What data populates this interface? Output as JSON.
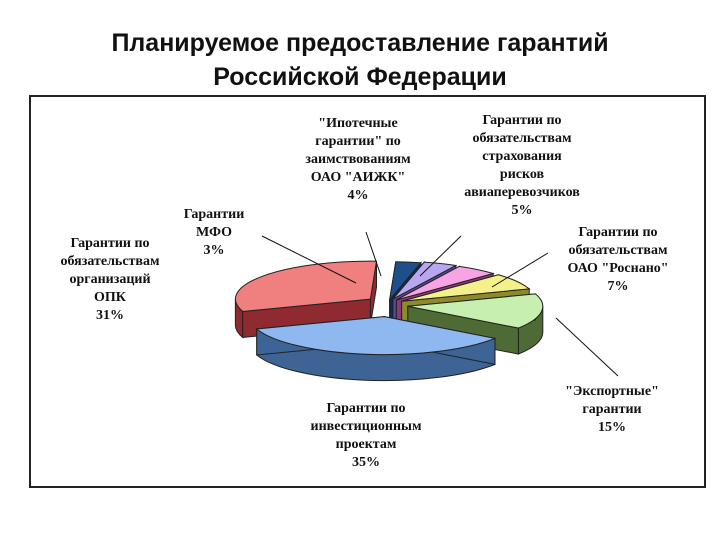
{
  "title": {
    "line1": "Планируемое предоставление гарантий",
    "line2": "Российской Федерации"
  },
  "chart_data": {
    "type": "pie",
    "title": "Планируемое предоставление гарантий Российской Федерации",
    "three_d": true,
    "exploded": true,
    "slices": [
      {
        "label": "Гарантии по инвестиционным проектам",
        "value": 35,
        "percent_text": "35%",
        "color": "#8fb8f0",
        "side_color": "#3d6494",
        "lines": [
          "Гарантии по",
          "инвестиционным",
          "проектам",
          "35%"
        ]
      },
      {
        "label": "Гарантии по обязательствам организаций ОПК",
        "value": 31,
        "percent_text": "31%",
        "color": "#f07f80",
        "side_color": "#8e2a30",
        "lines": [
          "Гарантии по",
          "обязательствам",
          "организаций",
          "ОПК",
          "31%"
        ]
      },
      {
        "label": "Гарантии МФО",
        "value": 3,
        "percent_text": "3%",
        "color": "#1f4f8a",
        "side_color": "#0f2c52",
        "lines": [
          "Гарантии",
          "МФО",
          "3%"
        ]
      },
      {
        "label": "\"Ипотечные гарантии\" по заимствованиям ОАО \"АИЖК\"",
        "value": 4,
        "percent_text": "4%",
        "color": "#b8a6f0",
        "side_color": "#5a4a99",
        "lines": [
          "\"Ипотечные",
          "гарантии\" по",
          "заимствованиям",
          "ОАО \"АИЖК\"",
          "4%"
        ]
      },
      {
        "label": "Гарантии по обязательствам страхования рисков авиаперевозчиков",
        "value": 5,
        "percent_text": "5%",
        "color": "#f7a4e4",
        "side_color": "#8a3a7d",
        "lines": [
          "Гарантии по",
          "обязательствам",
          "страхования",
          "рисков",
          "авиаперевозчиков",
          "5%"
        ]
      },
      {
        "label": "Гарантии по обязательствам ОАО \"Роснано\"",
        "value": 7,
        "percent_text": "7%",
        "color": "#f4f08a",
        "side_color": "#8e8a2a",
        "lines": [
          "Гарантии по",
          "обязательствам",
          "ОАО \"Роснано\"",
          "7%"
        ]
      },
      {
        "label": "\"Экспортные\" гарантии",
        "value": 15,
        "percent_text": "15%",
        "color": "#c6efb0",
        "side_color": "#4f6b35",
        "lines": [
          "\"Экспортные\"",
          "гарантии",
          "15%"
        ]
      }
    ]
  }
}
